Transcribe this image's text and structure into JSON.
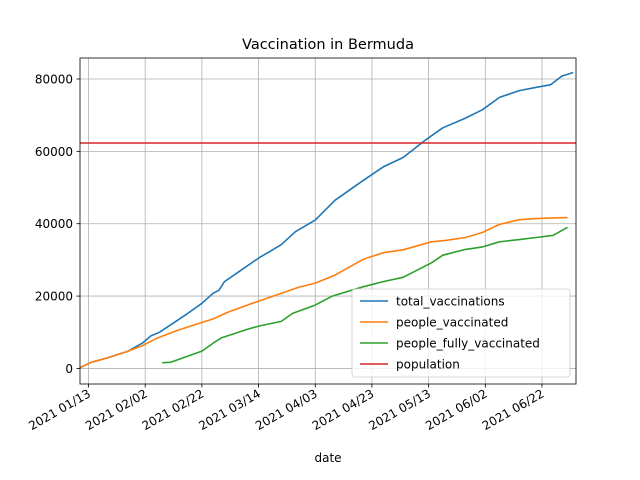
{
  "chart_data": {
    "type": "line",
    "title": "Vaccination in Bermuda",
    "xlabel": "date",
    "ylabel": "",
    "grid": true,
    "legend_position": "lower-right",
    "xlim": [
      "2021-01-10",
      "2021-07-04"
    ],
    "ylim": [
      -4300,
      85800
    ],
    "x_ticks": [
      "2021-01-13",
      "2021-02-02",
      "2021-02-22",
      "2021-03-14",
      "2021-04-03",
      "2021-04-23",
      "2021-05-13",
      "2021-06-02",
      "2021-06-22"
    ],
    "x_tick_labels": [
      "2021 01/13",
      "2021 02/02",
      "2021 02/22",
      "2021 03/14",
      "2021 04/03",
      "2021 04/23",
      "2021 05/13",
      "2021 06/02",
      "2021 06/22"
    ],
    "y_ticks": [
      0,
      20000,
      40000,
      60000,
      80000
    ],
    "y_tick_labels": [
      "0",
      "20000",
      "40000",
      "60000",
      "80000"
    ],
    "series": [
      {
        "name": "total_vaccinations",
        "color": "#1f77b4",
        "points": [
          [
            "2021-01-10",
            200
          ],
          [
            "2021-01-14",
            1700
          ],
          [
            "2021-01-20",
            3000
          ],
          [
            "2021-01-27",
            4800
          ],
          [
            "2021-02-01",
            7000
          ],
          [
            "2021-02-04",
            9000
          ],
          [
            "2021-02-07",
            10000
          ],
          [
            "2021-02-12",
            12600
          ],
          [
            "2021-02-17",
            15200
          ],
          [
            "2021-02-22",
            18000
          ],
          [
            "2021-02-26",
            20800
          ],
          [
            "2021-02-28",
            21600
          ],
          [
            "2021-03-02",
            24000
          ],
          [
            "2021-03-07",
            26700
          ],
          [
            "2021-03-14",
            30500
          ],
          [
            "2021-03-22",
            34200
          ],
          [
            "2021-03-27",
            37800
          ],
          [
            "2021-04-03",
            41000
          ],
          [
            "2021-04-10",
            46500
          ],
          [
            "2021-04-20",
            52000
          ],
          [
            "2021-04-27",
            55700
          ],
          [
            "2021-05-04",
            58300
          ],
          [
            "2021-05-12",
            63200
          ],
          [
            "2021-05-18",
            66500
          ],
          [
            "2021-05-26",
            69200
          ],
          [
            "2021-06-01",
            71500
          ],
          [
            "2021-06-07",
            74900
          ],
          [
            "2021-06-14",
            76800
          ],
          [
            "2021-06-20",
            77700
          ],
          [
            "2021-06-25",
            78400
          ],
          [
            "2021-06-29",
            80800
          ],
          [
            "2021-07-03",
            81800
          ]
        ]
      },
      {
        "name": "people_vaccinated",
        "color": "#ff7f0e",
        "points": [
          [
            "2021-01-10",
            200
          ],
          [
            "2021-01-14",
            1700
          ],
          [
            "2021-01-20",
            3000
          ],
          [
            "2021-01-27",
            4800
          ],
          [
            "2021-02-01",
            6300
          ],
          [
            "2021-02-06",
            8300
          ],
          [
            "2021-02-13",
            10400
          ],
          [
            "2021-02-20",
            12200
          ],
          [
            "2021-02-26",
            13700
          ],
          [
            "2021-03-03",
            15500
          ],
          [
            "2021-03-10",
            17500
          ],
          [
            "2021-03-17",
            19400
          ],
          [
            "2021-03-24",
            21300
          ],
          [
            "2021-03-28",
            22400
          ],
          [
            "2021-04-03",
            23600
          ],
          [
            "2021-04-10",
            25800
          ],
          [
            "2021-04-20",
            30200
          ],
          [
            "2021-04-27",
            32000
          ],
          [
            "2021-05-04",
            32800
          ],
          [
            "2021-05-14",
            35000
          ],
          [
            "2021-05-19",
            35400
          ],
          [
            "2021-05-26",
            36200
          ],
          [
            "2021-06-01",
            37600
          ],
          [
            "2021-06-07",
            39800
          ],
          [
            "2021-06-14",
            41100
          ],
          [
            "2021-06-20",
            41400
          ],
          [
            "2021-06-26",
            41600
          ],
          [
            "2021-07-01",
            41700
          ]
        ]
      },
      {
        "name": "people_fully_vaccinated",
        "color": "#2ca02c",
        "points": [
          [
            "2021-02-08",
            1600
          ],
          [
            "2021-02-11",
            1700
          ],
          [
            "2021-02-15",
            2800
          ],
          [
            "2021-02-22",
            4800
          ],
          [
            "2021-02-26",
            7000
          ],
          [
            "2021-03-01",
            8500
          ],
          [
            "2021-03-10",
            10800
          ],
          [
            "2021-03-14",
            11700
          ],
          [
            "2021-03-22",
            13000
          ],
          [
            "2021-03-26",
            15200
          ],
          [
            "2021-04-03",
            17500
          ],
          [
            "2021-04-09",
            20000
          ],
          [
            "2021-04-20",
            22600
          ],
          [
            "2021-04-27",
            24000
          ],
          [
            "2021-05-04",
            25200
          ],
          [
            "2021-05-14",
            29200
          ],
          [
            "2021-05-18",
            31300
          ],
          [
            "2021-05-26",
            32900
          ],
          [
            "2021-06-01",
            33600
          ],
          [
            "2021-06-07",
            35000
          ],
          [
            "2021-06-14",
            35600
          ],
          [
            "2021-06-20",
            36200
          ],
          [
            "2021-06-26",
            36800
          ],
          [
            "2021-07-01",
            39000
          ]
        ]
      },
      {
        "name": "population",
        "color": "#d62728",
        "points": [
          [
            "2021-01-10",
            62300
          ],
          [
            "2021-07-04",
            62300
          ]
        ]
      }
    ]
  }
}
